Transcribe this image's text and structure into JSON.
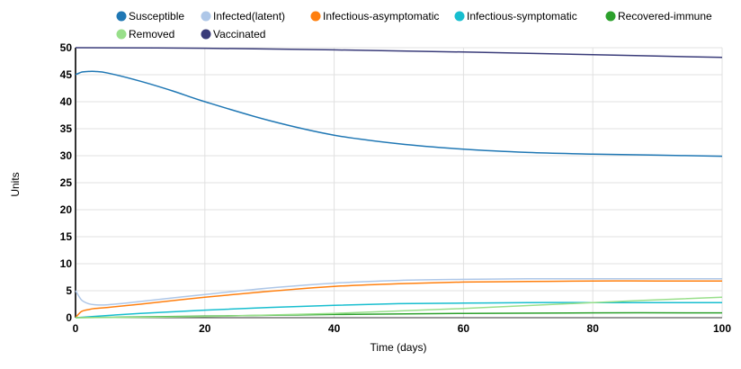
{
  "chart_data": {
    "type": "line",
    "title": "",
    "xlabel": "Time (days)",
    "ylabel": "Units",
    "xlim": [
      0,
      100
    ],
    "ylim": [
      0,
      50
    ],
    "xticks": [
      0,
      20,
      40,
      60,
      80,
      100
    ],
    "yticks": [
      0,
      5,
      10,
      15,
      20,
      25,
      30,
      35,
      40,
      45,
      50
    ],
    "grid": true,
    "legend_position": "top",
    "series": [
      {
        "name": "Susceptible",
        "color": "#1f77b4",
        "x": [
          0,
          1,
          2,
          3,
          5,
          10,
          15,
          20,
          30,
          40,
          50,
          60,
          70,
          80,
          90,
          100
        ],
        "y": [
          45,
          45.5,
          45.6,
          45.6,
          45.3,
          43.8,
          42,
          40,
          36.5,
          33.8,
          32.2,
          31.2,
          30.6,
          30.3,
          30.1,
          29.9
        ]
      },
      {
        "name": "Infected(latent)",
        "color": "#aec7e8",
        "x": [
          0,
          0.5,
          1,
          2,
          3,
          5,
          10,
          20,
          30,
          40,
          50,
          60,
          70,
          80,
          90,
          100
        ],
        "y": [
          5,
          4,
          3.2,
          2.6,
          2.4,
          2.4,
          3,
          4.3,
          5.5,
          6.4,
          6.9,
          7.1,
          7.2,
          7.2,
          7.2,
          7.2
        ]
      },
      {
        "name": "Infectious-asymptomatic",
        "color": "#ff7f0e",
        "x": [
          0,
          0.5,
          1,
          2,
          3,
          5,
          10,
          20,
          30,
          40,
          50,
          60,
          70,
          80,
          90,
          100
        ],
        "y": [
          0,
          0.7,
          1.2,
          1.5,
          1.7,
          1.9,
          2.5,
          3.8,
          4.9,
          5.8,
          6.3,
          6.6,
          6.7,
          6.8,
          6.8,
          6.8
        ]
      },
      {
        "name": "Infectious-symptomatic",
        "color": "#17becf",
        "x": [
          0,
          10,
          20,
          30,
          40,
          50,
          60,
          70,
          80,
          90,
          100
        ],
        "y": [
          0,
          0.8,
          1.4,
          1.9,
          2.3,
          2.6,
          2.7,
          2.8,
          2.8,
          2.8,
          2.8
        ]
      },
      {
        "name": "Recovered-immune",
        "color": "#2ca02c",
        "x": [
          0,
          20,
          40,
          60,
          80,
          100
        ],
        "y": [
          0,
          0.3,
          0.6,
          0.8,
          0.9,
          0.9
        ]
      },
      {
        "name": "Removed",
        "color": "#98df8a",
        "x": [
          0,
          20,
          40,
          60,
          80,
          100
        ],
        "y": [
          0,
          0.2,
          0.8,
          1.7,
          2.8,
          3.8
        ]
      },
      {
        "name": "Vaccinated",
        "color": "#393b79",
        "x": [
          0,
          20,
          40,
          60,
          80,
          100
        ],
        "y": [
          50,
          49.9,
          49.6,
          49.2,
          48.7,
          48.2
        ]
      }
    ]
  }
}
